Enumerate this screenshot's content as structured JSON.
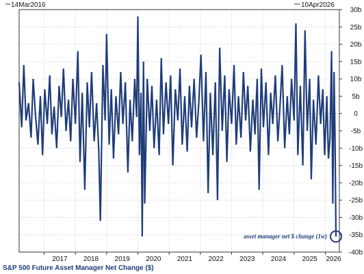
{
  "header": {
    "start_date": "14Mar2016",
    "end_date": "10Apr2026"
  },
  "chart_data": {
    "type": "line",
    "title": "S&P 500 Future Asset Manager Net Change ($)",
    "xlabel": "",
    "ylabel": "",
    "xlim": [
      2016.2,
      2026.45
    ],
    "ylim": [
      -40,
      30
    ],
    "x_ticks": [
      "2017",
      "2018",
      "2019",
      "2020",
      "2021",
      "2022",
      "2023",
      "2024",
      "2025",
      "2026"
    ],
    "y_ticks": [
      "30b",
      "25b",
      "20b",
      "15b",
      "10b",
      "5b",
      "0",
      "-5b",
      "-10b",
      "-15b",
      "-20b",
      "-25b",
      "-30b",
      "-35b",
      "-40b"
    ],
    "grid": true,
    "series": [
      {
        "name": "asset manager net $ change (1w)",
        "color": "#1f3d7a",
        "points": [
          [
            2016.2,
            9
          ],
          [
            2016.28,
            -4
          ],
          [
            2016.35,
            14
          ],
          [
            2016.42,
            -2
          ],
          [
            2016.5,
            3
          ],
          [
            2016.58,
            -7
          ],
          [
            2016.65,
            10
          ],
          [
            2016.72,
            0
          ],
          [
            2016.8,
            -9
          ],
          [
            2016.88,
            5
          ],
          [
            2016.95,
            -12
          ],
          [
            2017.02,
            7
          ],
          [
            2017.1,
            -3
          ],
          [
            2017.18,
            11
          ],
          [
            2017.25,
            -6
          ],
          [
            2017.32,
            2
          ],
          [
            2017.4,
            -10
          ],
          [
            2017.48,
            8
          ],
          [
            2017.55,
            -1
          ],
          [
            2017.62,
            13
          ],
          [
            2017.7,
            -5
          ],
          [
            2017.78,
            4
          ],
          [
            2017.85,
            -8
          ],
          [
            2017.92,
            10
          ],
          [
            2018.0,
            -3
          ],
          [
            2018.08,
            18
          ],
          [
            2018.15,
            -14
          ],
          [
            2018.22,
            6
          ],
          [
            2018.3,
            -22
          ],
          [
            2018.38,
            9
          ],
          [
            2018.45,
            -4
          ],
          [
            2018.52,
            12
          ],
          [
            2018.6,
            -8
          ],
          [
            2018.68,
            3
          ],
          [
            2018.75,
            -11
          ],
          [
            2018.8,
            -31
          ],
          [
            2018.88,
            14
          ],
          [
            2018.95,
            -2
          ],
          [
            2019.0,
            23
          ],
          [
            2019.08,
            -9
          ],
          [
            2019.15,
            7
          ],
          [
            2019.22,
            -13
          ],
          [
            2019.3,
            5
          ],
          [
            2019.38,
            -6
          ],
          [
            2019.45,
            12
          ],
          [
            2019.52,
            -3
          ],
          [
            2019.6,
            9
          ],
          [
            2019.68,
            -17
          ],
          [
            2019.75,
            4
          ],
          [
            2019.82,
            -8
          ],
          [
            2019.9,
            10
          ],
          [
            2019.96,
            -1
          ],
          [
            2020.0,
            28
          ],
          [
            2020.05,
            -12
          ],
          [
            2020.1,
            6
          ],
          [
            2020.14,
            -35.5
          ],
          [
            2020.18,
            15
          ],
          [
            2020.22,
            -26
          ],
          [
            2020.3,
            10
          ],
          [
            2020.38,
            -5
          ],
          [
            2020.45,
            8
          ],
          [
            2020.52,
            -10
          ],
          [
            2020.6,
            4
          ],
          [
            2020.68,
            -12
          ],
          [
            2020.75,
            16
          ],
          [
            2020.82,
            -6
          ],
          [
            2020.9,
            9
          ],
          [
            2020.98,
            -3
          ],
          [
            2021.05,
            11
          ],
          [
            2021.12,
            -15
          ],
          [
            2021.2,
            7
          ],
          [
            2021.28,
            -2
          ],
          [
            2021.35,
            13
          ],
          [
            2021.42,
            -9
          ],
          [
            2021.5,
            5
          ],
          [
            2021.58,
            -11
          ],
          [
            2021.65,
            8
          ],
          [
            2021.72,
            -4
          ],
          [
            2021.8,
            10
          ],
          [
            2021.88,
            -7
          ],
          [
            2021.95,
            3
          ],
          [
            2022.02,
            17
          ],
          [
            2022.1,
            -8
          ],
          [
            2022.18,
            12
          ],
          [
            2022.25,
            -23
          ],
          [
            2022.32,
            6
          ],
          [
            2022.4,
            -12
          ],
          [
            2022.48,
            9
          ],
          [
            2022.55,
            -25
          ],
          [
            2022.62,
            19
          ],
          [
            2022.7,
            -5
          ],
          [
            2022.78,
            11
          ],
          [
            2022.85,
            -14
          ],
          [
            2022.92,
            7
          ],
          [
            2023.0,
            -3
          ],
          [
            2023.08,
            14
          ],
          [
            2023.15,
            -9
          ],
          [
            2023.22,
            5
          ],
          [
            2023.3,
            -7
          ],
          [
            2023.38,
            12
          ],
          [
            2023.45,
            -2
          ],
          [
            2023.52,
            8
          ],
          [
            2023.6,
            -11
          ],
          [
            2023.68,
            4
          ],
          [
            2023.75,
            -6
          ],
          [
            2023.82,
            10
          ],
          [
            2023.88,
            -22
          ],
          [
            2023.95,
            13
          ],
          [
            2024.02,
            -4
          ],
          [
            2024.1,
            9
          ],
          [
            2024.18,
            -12
          ],
          [
            2024.25,
            6
          ],
          [
            2024.32,
            -3
          ],
          [
            2024.4,
            11
          ],
          [
            2024.48,
            -8
          ],
          [
            2024.55,
            2
          ],
          [
            2024.62,
            14
          ],
          [
            2024.7,
            -10
          ],
          [
            2024.78,
            5
          ],
          [
            2024.85,
            -6
          ],
          [
            2024.92,
            10
          ],
          [
            2025.0,
            -2
          ],
          [
            2025.06,
            26
          ],
          [
            2025.12,
            -12
          ],
          [
            2025.2,
            8
          ],
          [
            2025.28,
            -15
          ],
          [
            2025.35,
            24
          ],
          [
            2025.42,
            -5
          ],
          [
            2025.5,
            10
          ],
          [
            2025.55,
            -19
          ],
          [
            2025.62,
            4
          ],
          [
            2025.7,
            -9
          ],
          [
            2025.78,
            11
          ],
          [
            2025.85,
            -3
          ],
          [
            2025.92,
            7
          ],
          [
            2025.98,
            -12
          ],
          [
            2026.05,
            5
          ],
          [
            2026.1,
            -13
          ],
          [
            2026.15,
            -7
          ],
          [
            2026.2,
            18
          ],
          [
            2026.24,
            -26
          ],
          [
            2026.28,
            12
          ],
          [
            2026.31,
            -6
          ],
          [
            2026.34,
            -35.5
          ]
        ]
      }
    ],
    "annotations": [
      {
        "text": "asset manager net $ change (1w)",
        "x": 2026.34,
        "y": -35.5
      }
    ]
  }
}
